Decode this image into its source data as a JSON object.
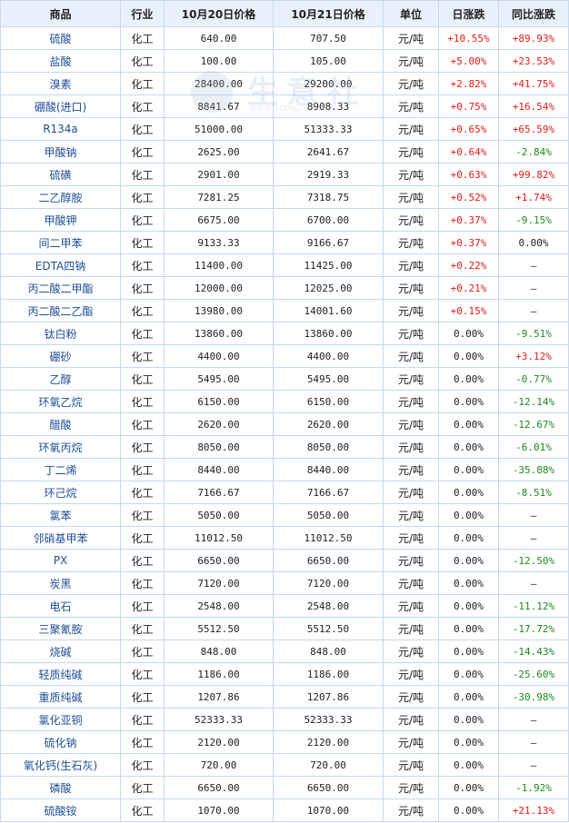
{
  "headers": {
    "name": "商品",
    "industry": "行业",
    "price1": "10月20日价格",
    "price2": "10月21日价格",
    "unit": "单位",
    "daily": "日涨跌",
    "yoy": "同比涨跌"
  },
  "watermark": {
    "text": "生意社",
    "url": "www.100ppi.com"
  },
  "rows": [
    {
      "name": "硫酸",
      "industry": "化工",
      "p1": "640.00",
      "p2": "707.50",
      "unit": "元/吨",
      "daily": "+10.55%",
      "daily_dir": "up",
      "yoy": "+89.93%",
      "yoy_dir": "up"
    },
    {
      "name": "盐酸",
      "industry": "化工",
      "p1": "100.00",
      "p2": "105.00",
      "unit": "元/吨",
      "daily": "+5.00%",
      "daily_dir": "up",
      "yoy": "+23.53%",
      "yoy_dir": "up"
    },
    {
      "name": "溴素",
      "industry": "化工",
      "p1": "28400.00",
      "p2": "29200.00",
      "unit": "元/吨",
      "daily": "+2.82%",
      "daily_dir": "up",
      "yoy": "+41.75%",
      "yoy_dir": "up"
    },
    {
      "name": "硼酸(进口)",
      "industry": "化工",
      "p1": "8841.67",
      "p2": "8908.33",
      "unit": "元/吨",
      "daily": "+0.75%",
      "daily_dir": "up",
      "yoy": "+16.54%",
      "yoy_dir": "up"
    },
    {
      "name": "R134a",
      "industry": "化工",
      "p1": "51000.00",
      "p2": "51333.33",
      "unit": "元/吨",
      "daily": "+0.65%",
      "daily_dir": "up",
      "yoy": "+65.59%",
      "yoy_dir": "up"
    },
    {
      "name": "甲酸钠",
      "industry": "化工",
      "p1": "2625.00",
      "p2": "2641.67",
      "unit": "元/吨",
      "daily": "+0.64%",
      "daily_dir": "up",
      "yoy": "-2.84%",
      "yoy_dir": "down"
    },
    {
      "name": "硫磺",
      "industry": "化工",
      "p1": "2901.00",
      "p2": "2919.33",
      "unit": "元/吨",
      "daily": "+0.63%",
      "daily_dir": "up",
      "yoy": "+99.82%",
      "yoy_dir": "up"
    },
    {
      "name": "二乙醇胺",
      "industry": "化工",
      "p1": "7281.25",
      "p2": "7318.75",
      "unit": "元/吨",
      "daily": "+0.52%",
      "daily_dir": "up",
      "yoy": "+1.74%",
      "yoy_dir": "up"
    },
    {
      "name": "甲酸钾",
      "industry": "化工",
      "p1": "6675.00",
      "p2": "6700.00",
      "unit": "元/吨",
      "daily": "+0.37%",
      "daily_dir": "up",
      "yoy": "-9.15%",
      "yoy_dir": "down"
    },
    {
      "name": "间二甲苯",
      "industry": "化工",
      "p1": "9133.33",
      "p2": "9166.67",
      "unit": "元/吨",
      "daily": "+0.37%",
      "daily_dir": "up",
      "yoy": "0.00%",
      "yoy_dir": "flat"
    },
    {
      "name": "EDTA四钠",
      "industry": "化工",
      "p1": "11400.00",
      "p2": "11425.00",
      "unit": "元/吨",
      "daily": "+0.22%",
      "daily_dir": "up",
      "yoy": "—",
      "yoy_dir": "flat"
    },
    {
      "name": "丙二酸二甲酯",
      "industry": "化工",
      "p1": "12000.00",
      "p2": "12025.00",
      "unit": "元/吨",
      "daily": "+0.21%",
      "daily_dir": "up",
      "yoy": "—",
      "yoy_dir": "flat"
    },
    {
      "name": "丙二酸二乙酯",
      "industry": "化工",
      "p1": "13980.00",
      "p2": "14001.60",
      "unit": "元/吨",
      "daily": "+0.15%",
      "daily_dir": "up",
      "yoy": "—",
      "yoy_dir": "flat"
    },
    {
      "name": "钛白粉",
      "industry": "化工",
      "p1": "13860.00",
      "p2": "13860.00",
      "unit": "元/吨",
      "daily": "0.00%",
      "daily_dir": "flat",
      "yoy": "-9.51%",
      "yoy_dir": "down"
    },
    {
      "name": "硼砂",
      "industry": "化工",
      "p1": "4400.00",
      "p2": "4400.00",
      "unit": "元/吨",
      "daily": "0.00%",
      "daily_dir": "flat",
      "yoy": "+3.12%",
      "yoy_dir": "up"
    },
    {
      "name": "乙醇",
      "industry": "化工",
      "p1": "5495.00",
      "p2": "5495.00",
      "unit": "元/吨",
      "daily": "0.00%",
      "daily_dir": "flat",
      "yoy": "-0.77%",
      "yoy_dir": "down"
    },
    {
      "name": "环氧乙烷",
      "industry": "化工",
      "p1": "6150.00",
      "p2": "6150.00",
      "unit": "元/吨",
      "daily": "0.00%",
      "daily_dir": "flat",
      "yoy": "-12.14%",
      "yoy_dir": "down"
    },
    {
      "name": "醋酸",
      "industry": "化工",
      "p1": "2620.00",
      "p2": "2620.00",
      "unit": "元/吨",
      "daily": "0.00%",
      "daily_dir": "flat",
      "yoy": "-12.67%",
      "yoy_dir": "down"
    },
    {
      "name": "环氧丙烷",
      "industry": "化工",
      "p1": "8050.00",
      "p2": "8050.00",
      "unit": "元/吨",
      "daily": "0.00%",
      "daily_dir": "flat",
      "yoy": "-6.01%",
      "yoy_dir": "down"
    },
    {
      "name": "丁二烯",
      "industry": "化工",
      "p1": "8440.00",
      "p2": "8440.00",
      "unit": "元/吨",
      "daily": "0.00%",
      "daily_dir": "flat",
      "yoy": "-35.88%",
      "yoy_dir": "down"
    },
    {
      "name": "环己烷",
      "industry": "化工",
      "p1": "7166.67",
      "p2": "7166.67",
      "unit": "元/吨",
      "daily": "0.00%",
      "daily_dir": "flat",
      "yoy": "-8.51%",
      "yoy_dir": "down"
    },
    {
      "name": "氯苯",
      "industry": "化工",
      "p1": "5050.00",
      "p2": "5050.00",
      "unit": "元/吨",
      "daily": "0.00%",
      "daily_dir": "flat",
      "yoy": "—",
      "yoy_dir": "flat"
    },
    {
      "name": "邻硝基甲苯",
      "industry": "化工",
      "p1": "11012.50",
      "p2": "11012.50",
      "unit": "元/吨",
      "daily": "0.00%",
      "daily_dir": "flat",
      "yoy": "—",
      "yoy_dir": "flat"
    },
    {
      "name": "PX",
      "industry": "化工",
      "p1": "6650.00",
      "p2": "6650.00",
      "unit": "元/吨",
      "daily": "0.00%",
      "daily_dir": "flat",
      "yoy": "-12.50%",
      "yoy_dir": "down"
    },
    {
      "name": "炭黑",
      "industry": "化工",
      "p1": "7120.00",
      "p2": "7120.00",
      "unit": "元/吨",
      "daily": "0.00%",
      "daily_dir": "flat",
      "yoy": "—",
      "yoy_dir": "flat"
    },
    {
      "name": "电石",
      "industry": "化工",
      "p1": "2548.00",
      "p2": "2548.00",
      "unit": "元/吨",
      "daily": "0.00%",
      "daily_dir": "flat",
      "yoy": "-11.12%",
      "yoy_dir": "down"
    },
    {
      "name": "三聚氰胺",
      "industry": "化工",
      "p1": "5512.50",
      "p2": "5512.50",
      "unit": "元/吨",
      "daily": "0.00%",
      "daily_dir": "flat",
      "yoy": "-17.72%",
      "yoy_dir": "down"
    },
    {
      "name": "烧碱",
      "industry": "化工",
      "p1": "848.00",
      "p2": "848.00",
      "unit": "元/吨",
      "daily": "0.00%",
      "daily_dir": "flat",
      "yoy": "-14.43%",
      "yoy_dir": "down"
    },
    {
      "name": "轻质纯碱",
      "industry": "化工",
      "p1": "1186.00",
      "p2": "1186.00",
      "unit": "元/吨",
      "daily": "0.00%",
      "daily_dir": "flat",
      "yoy": "-25.60%",
      "yoy_dir": "down"
    },
    {
      "name": "重质纯碱",
      "industry": "化工",
      "p1": "1207.86",
      "p2": "1207.86",
      "unit": "元/吨",
      "daily": "0.00%",
      "daily_dir": "flat",
      "yoy": "-30.98%",
      "yoy_dir": "down"
    },
    {
      "name": "氯化亚铜",
      "industry": "化工",
      "p1": "52333.33",
      "p2": "52333.33",
      "unit": "元/吨",
      "daily": "0.00%",
      "daily_dir": "flat",
      "yoy": "—",
      "yoy_dir": "flat"
    },
    {
      "name": "硫化钠",
      "industry": "化工",
      "p1": "2120.00",
      "p2": "2120.00",
      "unit": "元/吨",
      "daily": "0.00%",
      "daily_dir": "flat",
      "yoy": "—",
      "yoy_dir": "flat"
    },
    {
      "name": "氧化钙(生石灰)",
      "industry": "化工",
      "p1": "720.00",
      "p2": "720.00",
      "unit": "元/吨",
      "daily": "0.00%",
      "daily_dir": "flat",
      "yoy": "—",
      "yoy_dir": "flat"
    },
    {
      "name": "磷酸",
      "industry": "化工",
      "p1": "6650.00",
      "p2": "6650.00",
      "unit": "元/吨",
      "daily": "0.00%",
      "daily_dir": "flat",
      "yoy": "-1.92%",
      "yoy_dir": "down"
    },
    {
      "name": "硫酸铵",
      "industry": "化工",
      "p1": "1070.00",
      "p2": "1070.00",
      "unit": "元/吨",
      "daily": "0.00%",
      "daily_dir": "flat",
      "yoy": "+21.13%",
      "yoy_dir": "up"
    }
  ]
}
